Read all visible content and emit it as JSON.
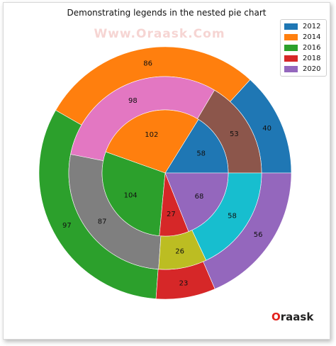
{
  "logo_text": "raask",
  "watermark": "Www.Oraask.Com",
  "chart_data": {
    "type": "pie",
    "title": "Demonstrating legends in the nested pie chart",
    "legend": {
      "placement": "top-right",
      "entries": [
        {
          "label": "2012",
          "color": "#1f77b4"
        },
        {
          "label": "2014",
          "color": "#ff7f0e"
        },
        {
          "label": "2016",
          "color": "#2ca02c"
        },
        {
          "label": "2018",
          "color": "#d62728"
        },
        {
          "label": "2020",
          "color": "#9467bd"
        }
      ]
    },
    "rings": [
      {
        "name": "outer",
        "values": [
          40,
          86,
          97,
          23,
          56
        ],
        "colors": [
          "#1f77b4",
          "#ff7f0e",
          "#2ca02c",
          "#d62728",
          "#9467bd"
        ]
      },
      {
        "name": "middle",
        "values": [
          53,
          98,
          87,
          26,
          58
        ],
        "colors": [
          "#8c564b",
          "#e377c2",
          "#7f7f7f",
          "#bcbd22",
          "#17becf"
        ]
      },
      {
        "name": "inner",
        "values": [
          58,
          102,
          104,
          27,
          68
        ],
        "colors": [
          "#1f77b4",
          "#ff7f0e",
          "#2ca02c",
          "#d62728",
          "#9467bd"
        ]
      }
    ]
  }
}
